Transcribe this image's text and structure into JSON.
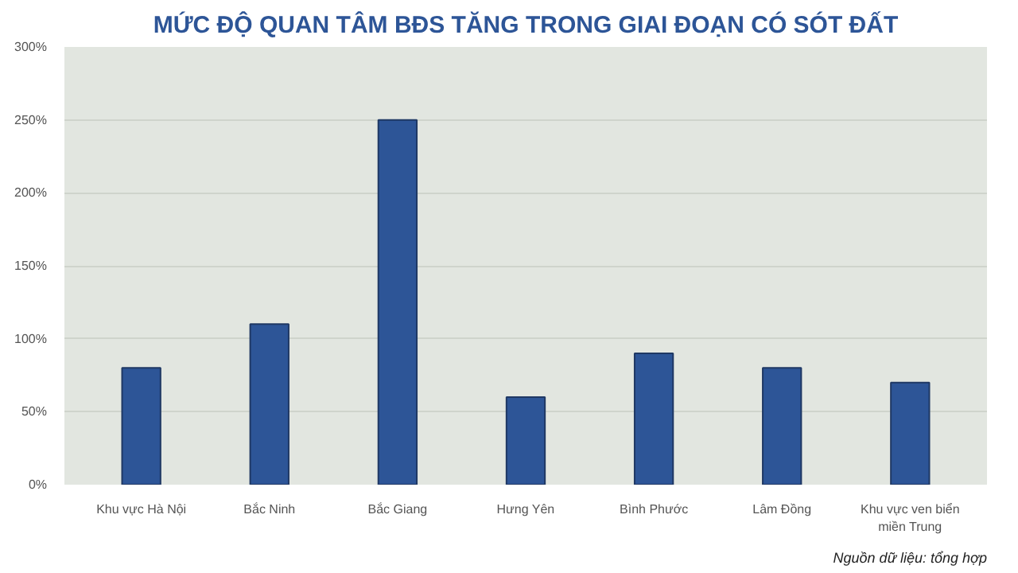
{
  "chart_data": {
    "type": "bar",
    "title": "MỨC ĐỘ QUAN TÂM BĐS TĂNG TRONG GIAI ĐOẠN CÓ SÓT ĐẤT",
    "categories": [
      "Khu vực Hà Nội",
      "Bắc Ninh",
      "Bắc Giang",
      "Hưng Yên",
      "Bình Phước",
      "Lâm Đồng",
      "Khu vực ven biển miền Trung"
    ],
    "values": [
      80,
      110,
      250,
      60,
      90,
      80,
      70
    ],
    "color": "#2d5597",
    "ylim": [
      0,
      300
    ],
    "yticks": [
      {
        "value": 0,
        "label": "0%"
      },
      {
        "value": 50,
        "label": "50%"
      },
      {
        "value": 100,
        "label": "100%"
      },
      {
        "value": 150,
        "label": "150%"
      },
      {
        "value": 200,
        "label": "200%"
      },
      {
        "value": 250,
        "label": "250%"
      },
      {
        "value": 300,
        "label": "300%"
      }
    ],
    "grid": "y",
    "annotations": [
      "Nguồn dữ liệu: tổng hợp"
    ]
  }
}
